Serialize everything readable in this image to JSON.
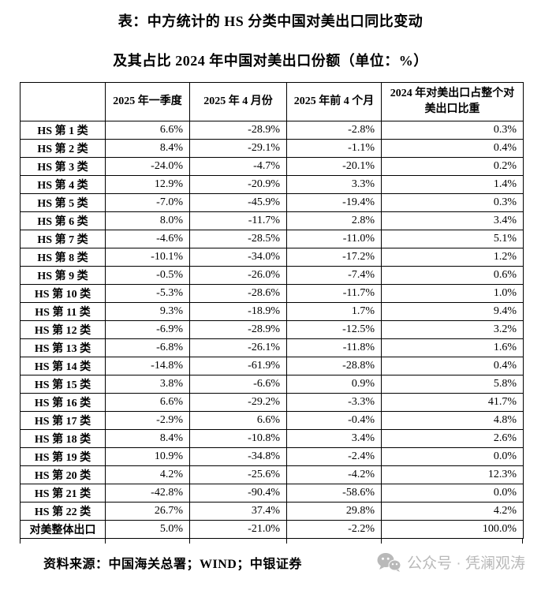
{
  "page": {
    "title_line1": "表：中方统计的 HS 分类中国对美出口同比变动",
    "title_line2": "及其占比 2024 年中国对美出口份额（单位：%）"
  },
  "table": {
    "headers": [
      "",
      "2025 年一季度",
      "2025 年 4 月份",
      "2025 年前 4 个月",
      "2024 年对美出口占整个对美出口比重"
    ],
    "rows": [
      {
        "label": "HS 第 1 类",
        "values": [
          "6.6%",
          "-28.9%",
          "-2.8%",
          "0.3%"
        ]
      },
      {
        "label": "HS 第 2 类",
        "values": [
          "8.4%",
          "-29.1%",
          "-1.1%",
          "0.4%"
        ]
      },
      {
        "label": "HS 第 3 类",
        "values": [
          "-24.0%",
          "-4.7%",
          "-20.1%",
          "0.2%"
        ]
      },
      {
        "label": "HS 第 4 类",
        "values": [
          "12.9%",
          "-20.9%",
          "3.3%",
          "1.4%"
        ]
      },
      {
        "label": "HS 第 5 类",
        "values": [
          "-7.0%",
          "-45.9%",
          "-19.4%",
          "0.3%"
        ]
      },
      {
        "label": "HS 第 6 类",
        "values": [
          "8.0%",
          "-11.7%",
          "2.8%",
          "3.4%"
        ]
      },
      {
        "label": "HS 第 7 类",
        "values": [
          "-4.6%",
          "-28.5%",
          "-11.0%",
          "5.1%"
        ]
      },
      {
        "label": "HS 第 8 类",
        "values": [
          "-10.1%",
          "-34.0%",
          "-17.2%",
          "1.2%"
        ]
      },
      {
        "label": "HS 第 9 类",
        "values": [
          "-0.5%",
          "-26.0%",
          "-7.4%",
          "0.6%"
        ]
      },
      {
        "label": "HS 第 10 类",
        "values": [
          "-5.3%",
          "-28.6%",
          "-11.7%",
          "1.0%"
        ]
      },
      {
        "label": "HS 第 11 类",
        "values": [
          "9.3%",
          "-18.9%",
          "1.7%",
          "9.4%"
        ]
      },
      {
        "label": "HS 第 12 类",
        "values": [
          "-6.9%",
          "-28.9%",
          "-12.5%",
          "3.2%"
        ]
      },
      {
        "label": "HS 第 13 类",
        "values": [
          "-6.8%",
          "-26.1%",
          "-11.8%",
          "1.6%"
        ]
      },
      {
        "label": "HS 第 14 类",
        "values": [
          "-14.8%",
          "-61.9%",
          "-28.8%",
          "0.4%"
        ]
      },
      {
        "label": "HS 第 15 类",
        "values": [
          "3.8%",
          "-6.6%",
          "0.9%",
          "5.8%"
        ]
      },
      {
        "label": "HS 第 16 类",
        "values": [
          "6.6%",
          "-29.2%",
          "-3.3%",
          "41.7%"
        ]
      },
      {
        "label": "HS 第 17 类",
        "values": [
          "-2.9%",
          "6.6%",
          "-0.4%",
          "4.8%"
        ]
      },
      {
        "label": "HS 第 18 类",
        "values": [
          "8.4%",
          "-10.8%",
          "3.4%",
          "2.6%"
        ]
      },
      {
        "label": "HS 第 19 类",
        "values": [
          "10.9%",
          "-34.8%",
          "-2.4%",
          "0.0%"
        ]
      },
      {
        "label": "HS 第 20 类",
        "values": [
          "4.2%",
          "-25.6%",
          "-4.2%",
          "12.3%"
        ]
      },
      {
        "label": "HS 第 21 类",
        "values": [
          "-42.8%",
          "-90.4%",
          "-58.6%",
          "0.0%"
        ]
      },
      {
        "label": "HS 第 22 类",
        "values": [
          "26.7%",
          "37.4%",
          "29.8%",
          "4.2%"
        ]
      },
      {
        "label": "对美整体出口",
        "values": [
          "5.0%",
          "-21.0%",
          "-2.2%",
          "100.0%"
        ]
      }
    ]
  },
  "footer": {
    "source": "资料来源：中国海关总署；WIND；中银证券"
  },
  "watermark": {
    "icon": "wechat-icon",
    "text": "公众号 · 凭澜观涛",
    "color": "#b9b9b9"
  }
}
